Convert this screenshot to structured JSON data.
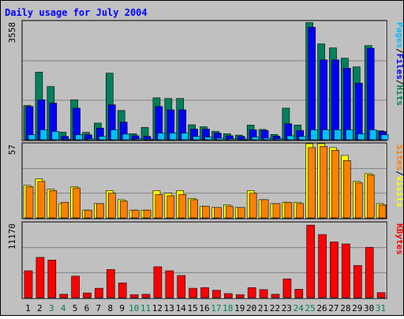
{
  "chart_data": {
    "type": "bar",
    "title": "Daily usage for July 2004",
    "x": [
      "1",
      "2",
      "3",
      "4",
      "5",
      "6",
      "7",
      "8",
      "9",
      "10",
      "11",
      "12",
      "13",
      "14",
      "15",
      "16",
      "17",
      "18",
      "19",
      "20",
      "21",
      "22",
      "23",
      "24",
      "25",
      "26",
      "27",
      "28",
      "29",
      "30",
      "31"
    ],
    "weekend_days": [
      "3",
      "4",
      "10",
      "11",
      "17",
      "18",
      "24",
      "25",
      "31"
    ],
    "panels": [
      {
        "name": "pages-files-hits",
        "axis_max": 3558,
        "axis_label": "3558",
        "legend": [
          "Pages",
          "/",
          "Files",
          "/",
          "Hits"
        ],
        "series": [
          {
            "name": "Hits",
            "color": "#00805c",
            "values": [
              1030,
              2030,
              1600,
              230,
              1200,
              220,
              500,
              2000,
              880,
              180,
              370,
              1260,
              1240,
              1240,
              450,
              390,
              250,
              180,
              140,
              440,
              310,
              160,
              950,
              440,
              3520,
              2880,
              2760,
              2450,
              2190,
              2830,
              270
            ]
          },
          {
            "name": "Files",
            "color": "#0000ff",
            "values": [
              1000,
              1200,
              1100,
              100,
              950,
              150,
              350,
              1050,
              530,
              120,
              100,
              1000,
              900,
              900,
              320,
              320,
              200,
              120,
              100,
              300,
              280,
              110,
              480,
              280,
              3380,
              2400,
              2400,
              2150,
              1700,
              2750,
              250
            ]
          },
          {
            "name": "Pages",
            "color": "#00c0ff",
            "values": [
              150,
              300,
              250,
              20,
              150,
              30,
              100,
              300,
              170,
              30,
              20,
              200,
              200,
              200,
              100,
              80,
              50,
              30,
              20,
              80,
              50,
              30,
              120,
              100,
              300,
              300,
              300,
              300,
              180,
              300,
              150
            ]
          }
        ]
      },
      {
        "name": "sites-visits",
        "axis_max": 57,
        "axis_label": "57",
        "legend": [
          "Sites",
          "/",
          "Visits"
        ],
        "series": [
          {
            "name": "Visits",
            "color": "#ffff00",
            "values": [
              25,
              30,
              22,
              11,
              24,
              6,
              11,
              21,
              14,
              6,
              6,
              21,
              19,
              21,
              15,
              9,
              8,
              10,
              8,
              21,
              14,
              11,
              12,
              12,
              57,
              57,
              54,
              48,
              28,
              34,
              11
            ]
          },
          {
            "name": "Sites",
            "color": "#ff8000",
            "values": [
              24,
              28,
              21,
              12,
              23,
              6,
              11,
              19,
              13,
              6,
              6,
              18,
              17,
              18,
              14,
              9,
              8,
              9,
              8,
              19,
              14,
              11,
              12,
              11,
              54,
              55,
              52,
              44,
              27,
              33,
              10
            ]
          }
        ]
      },
      {
        "name": "kbytes",
        "axis_max": 11170,
        "axis_label": "11170",
        "legend": [
          "KBytes"
        ],
        "series": [
          {
            "name": "KBytes",
            "color": "#ff0000",
            "values": [
              4000,
              6000,
              5600,
              500,
              3200,
              700,
              1400,
              4200,
              2200,
              450,
              500,
              4600,
              4000,
              3300,
              1400,
              1500,
              1100,
              600,
              450,
              1500,
              1200,
              500,
              2800,
              1250,
              10800,
              9400,
              8300,
              8000,
              4800,
              7500,
              750
            ]
          }
        ]
      }
    ],
    "colors": {
      "background": "#c0c0c0",
      "plot_background": "#c0c0c0",
      "title": "#0000ff",
      "weekday_label": "#000000",
      "weekend_label": "#00805c",
      "pages": "#00c0ff",
      "files": "#0000ff",
      "hits": "#00805c",
      "sites": "#ff8000",
      "visits": "#ffff00",
      "kbytes": "#ff0000"
    }
  }
}
